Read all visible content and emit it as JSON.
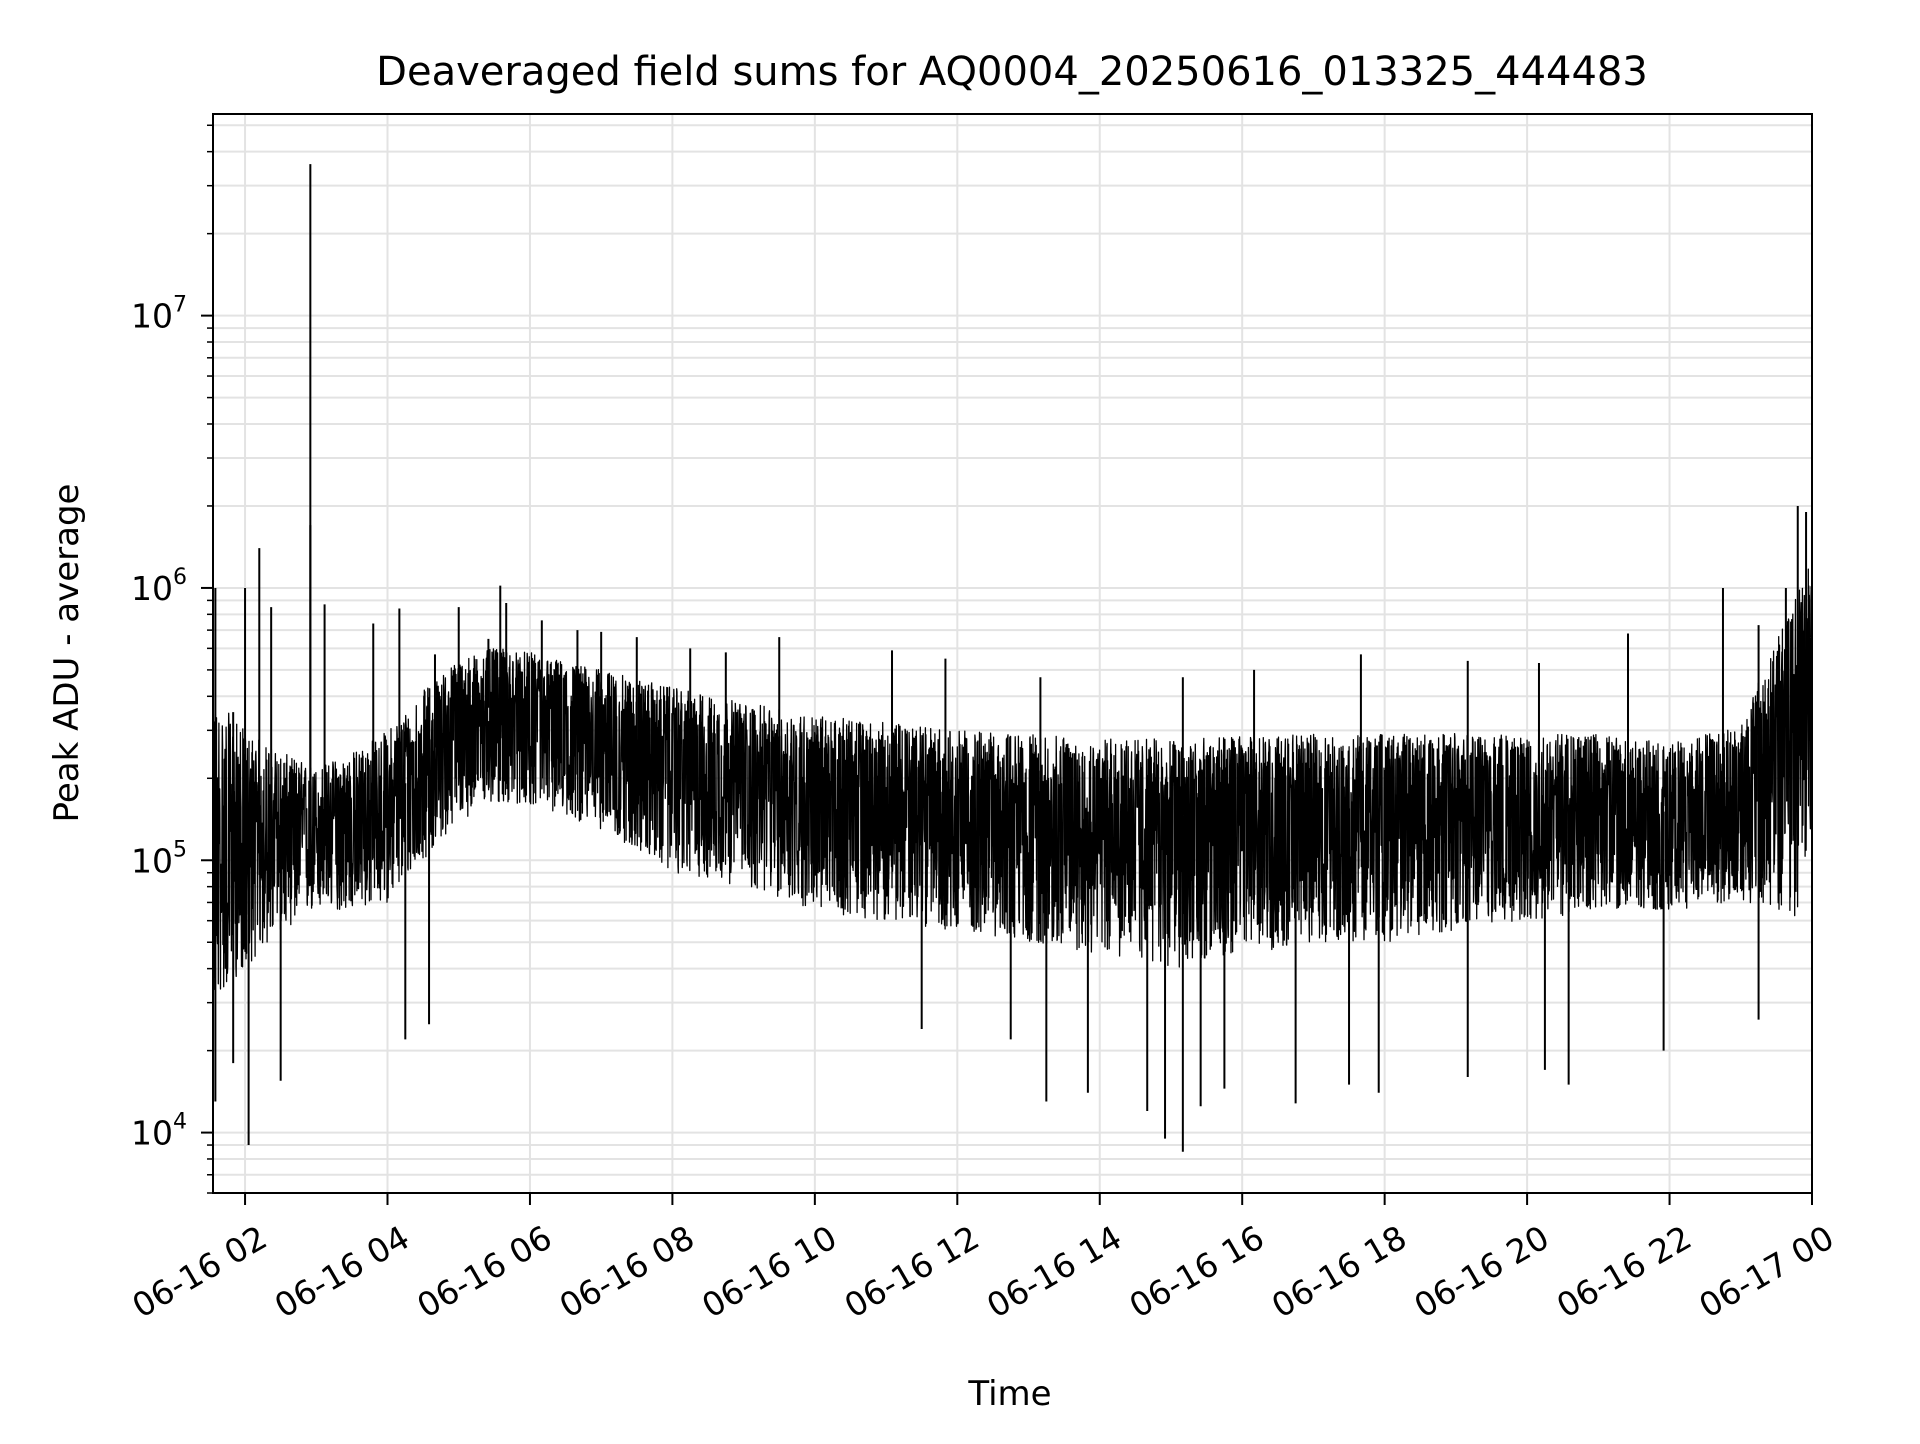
{
  "chart_data": {
    "type": "line",
    "title": "Deaveraged field sums for AQ0004_20250616_013325_444483",
    "xlabel": "Time",
    "ylabel": "Peak ADU - average",
    "yscale": "log",
    "ylim": [
      6000,
      55000000
    ],
    "xlim": [
      "06-16 01:33",
      "06-17 00:00"
    ],
    "grid": true,
    "legend": "none",
    "colors": {
      "line": "#000000",
      "grid": "#e3e3e3",
      "axes": "#000000",
      "background": "#ffffff"
    },
    "x_ticks": [
      {
        "value": "06-16 02:00",
        "label": "06-16 02"
      },
      {
        "value": "06-16 04:00",
        "label": "06-16 04"
      },
      {
        "value": "06-16 06:00",
        "label": "06-16 06"
      },
      {
        "value": "06-16 08:00",
        "label": "06-16 08"
      },
      {
        "value": "06-16 10:00",
        "label": "06-16 10"
      },
      {
        "value": "06-16 12:00",
        "label": "06-16 12"
      },
      {
        "value": "06-16 14:00",
        "label": "06-16 14"
      },
      {
        "value": "06-16 16:00",
        "label": "06-16 16"
      },
      {
        "value": "06-16 18:00",
        "label": "06-16 18"
      },
      {
        "value": "06-16 20:00",
        "label": "06-16 20"
      },
      {
        "value": "06-16 22:00",
        "label": "06-16 22"
      },
      {
        "value": "06-17 00:00",
        "label": "06-17 00"
      }
    ],
    "y_ticks": [
      {
        "value": 10000,
        "base": "10",
        "exp": "4"
      },
      {
        "value": 100000,
        "base": "10",
        "exp": "5"
      },
      {
        "value": 1000000,
        "base": "10",
        "exp": "6"
      },
      {
        "value": 10000000,
        "base": "10",
        "exp": "7"
      }
    ],
    "series": [
      {
        "band": {
          "x": [
            "06-16 01:33",
            "06-16 02:00",
            "06-16 02:30",
            "06-16 03:00",
            "06-16 03:30",
            "06-16 04:00",
            "06-16 04:30",
            "06-16 05:00",
            "06-16 05:30",
            "06-16 06:00",
            "06-16 07:00",
            "06-16 08:00",
            "06-16 09:00",
            "06-16 10:00",
            "06-16 11:00",
            "06-16 12:00",
            "06-16 13:00",
            "06-16 14:00",
            "06-16 15:00",
            "06-16 16:00",
            "06-16 17:00",
            "06-16 18:00",
            "06-16 19:00",
            "06-16 20:00",
            "06-16 21:00",
            "06-16 22:00",
            "06-16 23:00",
            "06-16 23:45",
            "06-17 00:00"
          ],
          "low": [
            30000,
            40000,
            55000,
            65000,
            65000,
            70000,
            100000,
            140000,
            160000,
            160000,
            130000,
            90000,
            80000,
            65000,
            60000,
            55000,
            50000,
            45000,
            40000,
            45000,
            50000,
            50000,
            55000,
            60000,
            65000,
            65000,
            70000,
            60000,
            110000
          ],
          "high": [
            400000,
            300000,
            250000,
            220000,
            250000,
            300000,
            420000,
            550000,
            600000,
            580000,
            500000,
            430000,
            380000,
            340000,
            320000,
            300000,
            290000,
            280000,
            280000,
            285000,
            290000,
            290000,
            295000,
            300000,
            290000,
            270000,
            320000,
            900000,
            1400000
          ],
          "center": [
            90000,
            110000,
            130000,
            130000,
            140000,
            160000,
            230000,
            330000,
            370000,
            350000,
            300000,
            250000,
            210000,
            180000,
            170000,
            160000,
            155000,
            150000,
            145000,
            150000,
            155000,
            155000,
            160000,
            160000,
            160000,
            150000,
            170000,
            350000,
            500000
          ]
        },
        "spikes_up": [
          {
            "x": "06-16 01:35",
            "y": 1000000
          },
          {
            "x": "06-16 01:50",
            "y": 350000
          },
          {
            "x": "06-16 02:00",
            "y": 1000000
          },
          {
            "x": "06-16 02:12",
            "y": 1400000
          },
          {
            "x": "06-16 02:22",
            "y": 850000
          },
          {
            "x": "06-16 02:55",
            "y": 36000000
          },
          {
            "x": "06-16 02:55",
            "y": 1700000
          },
          {
            "x": "06-16 03:07",
            "y": 870000
          },
          {
            "x": "06-16 03:48",
            "y": 740000
          },
          {
            "x": "06-16 04:10",
            "y": 840000
          },
          {
            "x": "06-16 04:40",
            "y": 570000
          },
          {
            "x": "06-16 05:00",
            "y": 850000
          },
          {
            "x": "06-16 05:25",
            "y": 650000
          },
          {
            "x": "06-16 05:35",
            "y": 1020000
          },
          {
            "x": "06-16 05:40",
            "y": 880000
          },
          {
            "x": "06-16 06:10",
            "y": 760000
          },
          {
            "x": "06-16 06:40",
            "y": 700000
          },
          {
            "x": "06-16 07:00",
            "y": 690000
          },
          {
            "x": "06-16 07:30",
            "y": 660000
          },
          {
            "x": "06-16 08:15",
            "y": 600000
          },
          {
            "x": "06-16 08:45",
            "y": 580000
          },
          {
            "x": "06-16 09:30",
            "y": 660000
          },
          {
            "x": "06-16 11:05",
            "y": 590000
          },
          {
            "x": "06-16 11:50",
            "y": 550000
          },
          {
            "x": "06-16 13:10",
            "y": 470000
          },
          {
            "x": "06-16 15:10",
            "y": 470000
          },
          {
            "x": "06-16 16:10",
            "y": 500000
          },
          {
            "x": "06-16 17:40",
            "y": 570000
          },
          {
            "x": "06-16 19:10",
            "y": 540000
          },
          {
            "x": "06-16 20:10",
            "y": 530000
          },
          {
            "x": "06-16 21:25",
            "y": 680000
          },
          {
            "x": "06-16 22:45",
            "y": 1000000
          },
          {
            "x": "06-16 23:15",
            "y": 730000
          },
          {
            "x": "06-16 23:38",
            "y": 1000000
          },
          {
            "x": "06-16 23:48",
            "y": 2000000
          },
          {
            "x": "06-16 23:55",
            "y": 1900000
          }
        ],
        "spikes_down": [
          {
            "x": "06-16 01:35",
            "y": 13000
          },
          {
            "x": "06-16 01:50",
            "y": 18000
          },
          {
            "x": "06-16 02:03",
            "y": 9000
          },
          {
            "x": "06-16 02:30",
            "y": 15500
          },
          {
            "x": "06-16 04:15",
            "y": 22000
          },
          {
            "x": "06-16 04:35",
            "y": 25000
          },
          {
            "x": "06-16 11:30",
            "y": 24000
          },
          {
            "x": "06-16 12:45",
            "y": 22000
          },
          {
            "x": "06-16 13:15",
            "y": 13000
          },
          {
            "x": "06-16 13:50",
            "y": 14000
          },
          {
            "x": "06-16 14:40",
            "y": 12000
          },
          {
            "x": "06-16 14:55",
            "y": 9500
          },
          {
            "x": "06-16 15:10",
            "y": 8500
          },
          {
            "x": "06-16 15:25",
            "y": 12500
          },
          {
            "x": "06-16 15:45",
            "y": 14500
          },
          {
            "x": "06-16 16:45",
            "y": 12800
          },
          {
            "x": "06-16 17:30",
            "y": 15000
          },
          {
            "x": "06-16 17:55",
            "y": 14000
          },
          {
            "x": "06-16 19:10",
            "y": 16000
          },
          {
            "x": "06-16 20:15",
            "y": 17000
          },
          {
            "x": "06-16 20:35",
            "y": 15000
          },
          {
            "x": "06-16 21:55",
            "y": 20000
          },
          {
            "x": "06-16 23:15",
            "y": 26000
          }
        ]
      }
    ]
  }
}
